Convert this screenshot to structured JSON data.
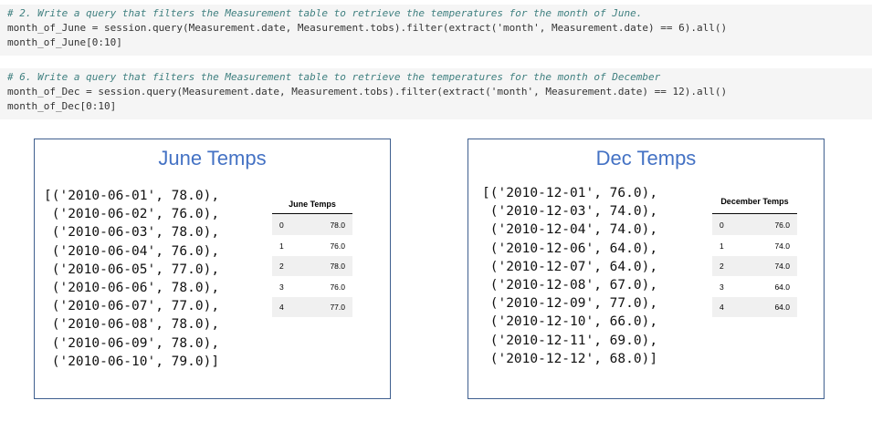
{
  "cells": [
    {
      "lines": [
        "# 2. Write a query that filters the Measurement table to retrieve the temperatures for the month of June.",
        "month_of_June = session.query(Measurement.date, Measurement.tobs).filter(extract('month', Measurement.date) == 6).all()",
        "month_of_June[0:10]"
      ]
    },
    {
      "lines": [
        "# 6. Write a query that filters the Measurement table to retrieve the temperatures for the month of December",
        "month_of_Dec = session.query(Measurement.date, Measurement.tobs).filter(extract('month', Measurement.date) == 12).all()",
        "month_of_Dec[0:10]"
      ]
    }
  ],
  "panels": [
    {
      "title": "June Temps",
      "output": [
        "[('2010-06-01', 78.0),",
        " ('2010-06-02', 76.0),",
        " ('2010-06-03', 78.0),",
        " ('2010-06-04', 76.0),",
        " ('2010-06-05', 77.0),",
        " ('2010-06-06', 78.0),",
        " ('2010-06-07', 77.0),",
        " ('2010-06-08', 78.0),",
        " ('2010-06-09', 78.0),",
        " ('2010-06-10', 79.0)]"
      ],
      "table": {
        "header": "June Temps",
        "rows": [
          [
            "0",
            "78.0"
          ],
          [
            "1",
            "76.0"
          ],
          [
            "2",
            "78.0"
          ],
          [
            "3",
            "76.0"
          ],
          [
            "4",
            "77.0"
          ]
        ]
      }
    },
    {
      "title": "Dec Temps",
      "output": [
        "[('2010-12-01', 76.0),",
        " ('2010-12-03', 74.0),",
        " ('2010-12-04', 74.0),",
        " ('2010-12-06', 64.0),",
        " ('2010-12-07', 64.0),",
        " ('2010-12-08', 67.0),",
        " ('2010-12-09', 77.0),",
        " ('2010-12-10', 66.0),",
        " ('2010-12-11', 69.0),",
        " ('2010-12-12', 68.0)]"
      ],
      "table": {
        "header": "December Temps",
        "rows": [
          [
            "0",
            "76.0"
          ],
          [
            "1",
            "74.0"
          ],
          [
            "2",
            "74.0"
          ],
          [
            "3",
            "64.0"
          ],
          [
            "4",
            "64.0"
          ]
        ]
      }
    }
  ]
}
